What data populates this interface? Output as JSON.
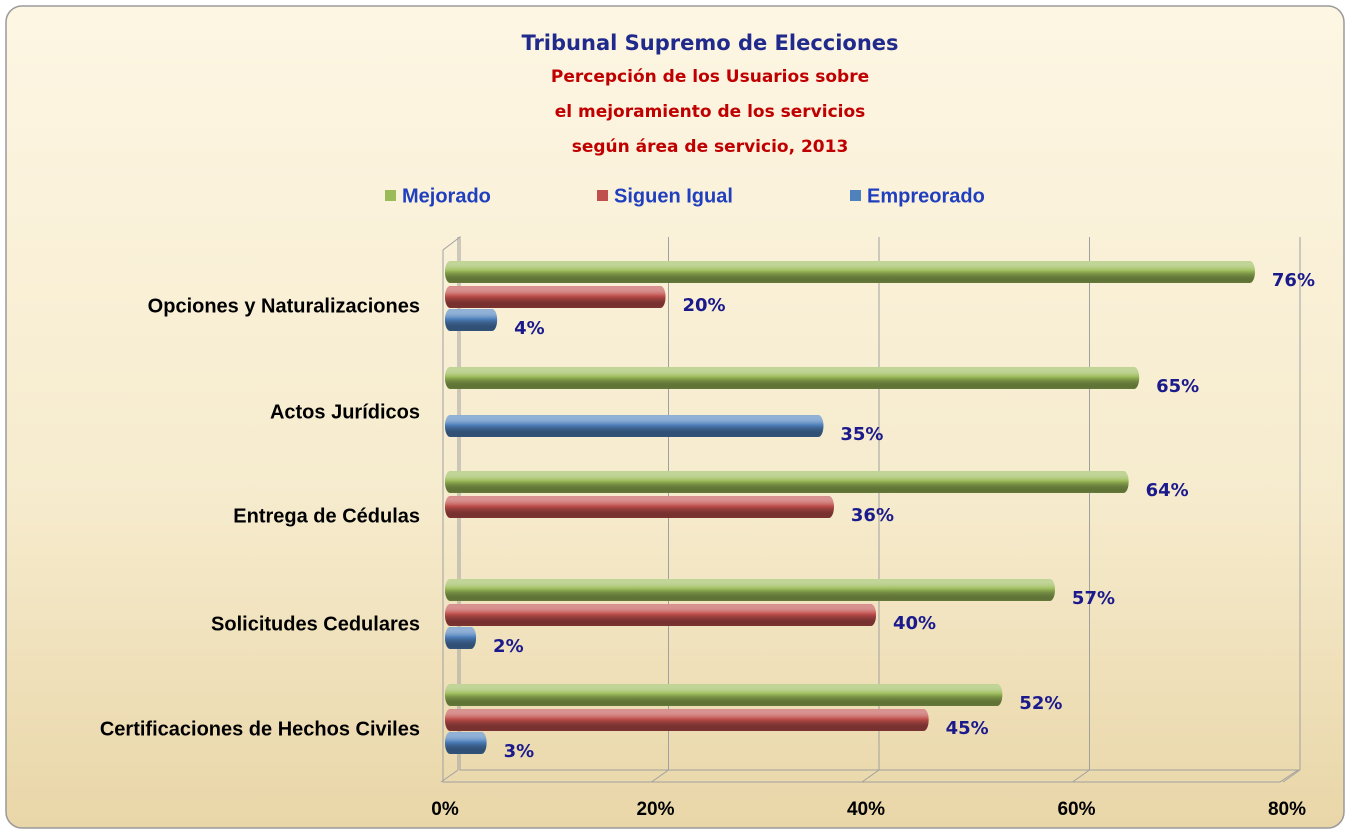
{
  "chart_data": {
    "type": "bar",
    "orientation": "horizontal",
    "title": "Tribunal Supremo de Elecciones",
    "subtitle": [
      "Percepción de los Usuarios sobre",
      "el mejoramiento de los servicios",
      "según área de servicio, 2013"
    ],
    "categories": [
      "Opciones y Naturalizaciones",
      "Actos Jurídicos",
      "Entrega de Cédulas",
      "Solicitudes Cedulares",
      "Certificaciones de Hechos Civiles"
    ],
    "series": [
      {
        "name": "Mejorado",
        "color": "#9bbb59",
        "values": [
          76,
          65,
          64,
          57,
          52
        ],
        "value_labels": [
          "76%",
          "65%",
          "64%",
          "57%",
          "52%"
        ]
      },
      {
        "name": "Siguen Igual",
        "color": "#c0504d",
        "values": [
          20,
          null,
          36,
          40,
          45
        ],
        "value_labels": [
          "20%",
          null,
          "36%",
          "40%",
          "45%"
        ]
      },
      {
        "name": "Empreorado",
        "color": "#4f81bd",
        "values": [
          4,
          35,
          null,
          2,
          3
        ],
        "value_labels": [
          "4%",
          "35%",
          null,
          "2%",
          "3%"
        ]
      }
    ],
    "xlim": [
      0,
      80
    ],
    "xticks": [
      {
        "value": 0,
        "label": "0%"
      },
      {
        "value": 20,
        "label": "20%"
      },
      {
        "value": 40,
        "label": "40%"
      },
      {
        "value": 60,
        "label": "60%"
      },
      {
        "value": 80,
        "label": "80%"
      }
    ],
    "grid": true,
    "legend": "top"
  }
}
